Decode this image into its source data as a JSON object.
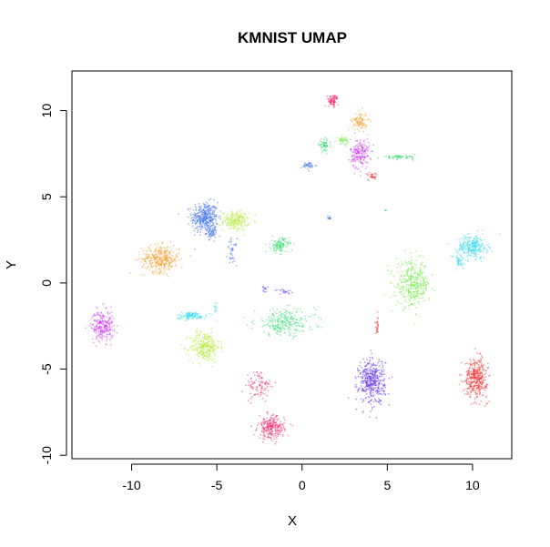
{
  "chart_data": {
    "type": "scatter",
    "title": "KMNIST UMAP",
    "xlabel": "X",
    "ylabel": "Y",
    "xlim": [
      -13.5,
      12.3
    ],
    "ylim": [
      -10.2,
      12.3
    ],
    "xticks": [
      -10,
      -5,
      0,
      5,
      10
    ],
    "yticks": [
      -10,
      -5,
      0,
      5,
      10
    ],
    "grid": false,
    "legend": "none",
    "note_colors": "clusters colored by class (rainbow palette), semi-transparent points",
    "clusters": [
      {
        "color": "#3b6fe8",
        "cx": -5.7,
        "cy": 3.8,
        "rx": 0.7,
        "ry": 0.8,
        "n": 380
      },
      {
        "color": "#3b6fe8",
        "cx": -5.3,
        "cy": 2.9,
        "rx": 0.3,
        "ry": 0.3,
        "n": 60
      },
      {
        "color": "#3b6fe8",
        "cx": -4.1,
        "cy": 1.8,
        "rx": 0.25,
        "ry": 0.7,
        "n": 40
      },
      {
        "color": "#3b6fe8",
        "cx": 0.4,
        "cy": 6.8,
        "rx": 0.4,
        "ry": 0.2,
        "n": 40
      },
      {
        "color": "#3b6fe8",
        "cx": 1.6,
        "cy": 3.8,
        "rx": 0.1,
        "ry": 0.1,
        "n": 12
      },
      {
        "color": "#b6e83b",
        "cx": -3.9,
        "cy": 3.6,
        "rx": 0.7,
        "ry": 0.5,
        "n": 220
      },
      {
        "color": "#b6e83b",
        "cx": -5.7,
        "cy": -3.7,
        "rx": 0.8,
        "ry": 0.8,
        "n": 320
      },
      {
        "color": "#f39c2a",
        "cx": -8.3,
        "cy": 1.4,
        "rx": 1.0,
        "ry": 0.7,
        "n": 360
      },
      {
        "color": "#f39c2a",
        "cx": 3.4,
        "cy": 9.4,
        "rx": 0.4,
        "ry": 0.5,
        "n": 100
      },
      {
        "color": "#cc3bf0",
        "cx": -11.7,
        "cy": -2.5,
        "rx": 0.6,
        "ry": 0.8,
        "n": 260
      },
      {
        "color": "#cc3bf0",
        "cx": 3.4,
        "cy": 7.5,
        "rx": 0.5,
        "ry": 0.8,
        "n": 200
      },
      {
        "color": "#2ad8ee",
        "cx": -6.5,
        "cy": -1.9,
        "rx": 0.8,
        "ry": 0.2,
        "n": 110
      },
      {
        "color": "#2ad8ee",
        "cx": 10.0,
        "cy": 2.1,
        "rx": 0.8,
        "ry": 0.6,
        "n": 260
      },
      {
        "color": "#2ad8ee",
        "cx": 9.2,
        "cy": 1.2,
        "rx": 0.4,
        "ry": 0.4,
        "n": 40
      },
      {
        "color": "#2fdc6a",
        "cx": -1.3,
        "cy": 2.2,
        "rx": 0.5,
        "ry": 0.4,
        "n": 120
      },
      {
        "color": "#2fdc6a",
        "cx": -1.0,
        "cy": -2.3,
        "rx": 1.6,
        "ry": 0.7,
        "n": 260
      },
      {
        "color": "#2fdc6a",
        "cx": 1.3,
        "cy": 8.0,
        "rx": 0.3,
        "ry": 0.3,
        "n": 60
      },
      {
        "color": "#2fdc6a",
        "cx": 5.7,
        "cy": 7.3,
        "rx": 0.9,
        "ry": 0.1,
        "n": 60
      },
      {
        "color": "#6ee83b",
        "cx": 6.5,
        "cy": -0.1,
        "rx": 0.9,
        "ry": 1.2,
        "n": 380
      },
      {
        "color": "#6ee83b",
        "cx": 2.4,
        "cy": 8.3,
        "rx": 0.3,
        "ry": 0.2,
        "n": 40
      },
      {
        "color": "#5a2ae8",
        "cx": 4.1,
        "cy": -5.7,
        "rx": 0.7,
        "ry": 1.2,
        "n": 420
      },
      {
        "color": "#5a2ae8",
        "cx": -2.2,
        "cy": -0.4,
        "rx": 0.2,
        "ry": 0.2,
        "n": 12
      },
      {
        "color": "#5a2ae8",
        "cx": -1.0,
        "cy": -0.5,
        "rx": 0.5,
        "ry": 0.15,
        "n": 20
      },
      {
        "color": "#f0236a",
        "cx": -1.8,
        "cy": -8.4,
        "rx": 0.7,
        "ry": 0.6,
        "n": 260
      },
      {
        "color": "#f0236a",
        "cx": -2.5,
        "cy": -6.0,
        "rx": 0.7,
        "ry": 0.8,
        "n": 100
      },
      {
        "color": "#f0236a",
        "cx": 1.8,
        "cy": 10.6,
        "rx": 0.3,
        "ry": 0.3,
        "n": 80
      },
      {
        "color": "#f42a2a",
        "cx": 10.2,
        "cy": -5.5,
        "rx": 0.6,
        "ry": 1.0,
        "n": 380
      },
      {
        "color": "#f42a2a",
        "cx": 4.4,
        "cy": -2.6,
        "rx": 0.1,
        "ry": 0.5,
        "n": 25
      },
      {
        "color": "#f42a2a",
        "cx": 4.2,
        "cy": 6.2,
        "rx": 0.3,
        "ry": 0.2,
        "n": 30
      },
      {
        "color": "#2ad8ee",
        "cx": -5.1,
        "cy": -1.4,
        "rx": 0.1,
        "ry": 0.3,
        "n": 12
      },
      {
        "color": "#2fdc6a",
        "cx": 4.9,
        "cy": 4.2,
        "rx": 0.05,
        "ry": 0.05,
        "n": 4
      }
    ]
  }
}
